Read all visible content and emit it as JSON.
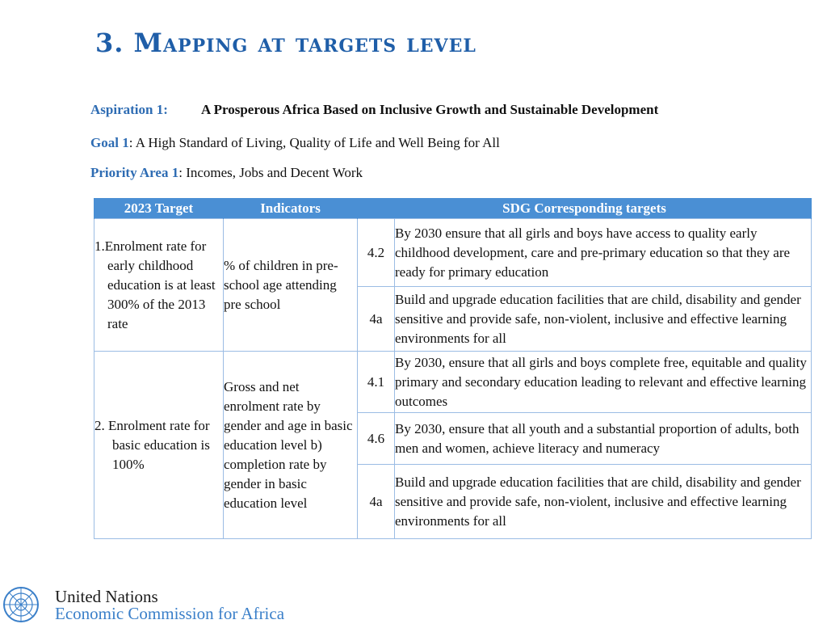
{
  "title": "3. Mapping at targets level",
  "aspiration": {
    "label": "Aspiration 1:",
    "text": "A Prosperous Africa Based on Inclusive Growth and Sustainable Development"
  },
  "goal": {
    "label": "Goal 1",
    "text": ":  A High Standard of Living, Quality of Life and Well Being for All"
  },
  "priority": {
    "label": "Priority Area 1",
    "text": ": Incomes, Jobs and Decent Work"
  },
  "table": {
    "headers": [
      "2023 Target",
      "Indicators",
      "SDG Corresponding targets"
    ],
    "rows": [
      {
        "target": "1.Enrolment rate for early childhood education is at least 300% of the 2013 rate",
        "indicator": "% of children in pre-school age attending pre school",
        "sdg": [
          {
            "code": "4.2",
            "text": "By 2030 ensure that all girls and boys have access to quality early childhood development, care and pre-primary education so that they are ready for primary education"
          },
          {
            "code": "4a",
            "text": "Build and upgrade education facilities that are child, disability and gender sensitive and provide safe, non-violent, inclusive and effective learning environments for all"
          }
        ]
      },
      {
        "target": "2. Enrolment rate for basic education is 100%",
        "indicator": "Gross and net enrolment rate by gender  and age in basic education level b) completion rate by gender in basic education level",
        "sdg": [
          {
            "code": "4.1",
            "text": "By 2030, ensure that all girls and boys complete free, equitable and quality primary and secondary education leading to relevant and effective learning outcomes"
          },
          {
            "code": "4.6",
            "text": "By 2030, ensure that all youth and a substantial proportion of adults, both men and women, achieve literacy and numeracy"
          },
          {
            "code": "4a",
            "text": "Build and upgrade education facilities that are child, disability and gender sensitive and provide safe, non-violent, inclusive and effective learning environments for all"
          }
        ]
      }
    ]
  },
  "footer": {
    "emblem_icon": "un-emblem-icon",
    "org_line1": "United Nations",
    "org_line2": "Economic Commission for Africa"
  }
}
